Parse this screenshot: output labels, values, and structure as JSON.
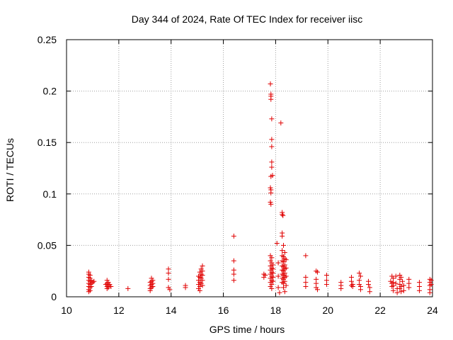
{
  "chart_data": {
    "type": "scatter",
    "title": "Day 344 of 2024, Rate Of TEC Index for receiver iisc",
    "xlabel": "GPS time / hours",
    "ylabel": "ROTI / TECUs",
    "xlim": [
      10,
      24
    ],
    "ylim": [
      0,
      0.25
    ],
    "xticks": [
      10,
      12,
      14,
      16,
      18,
      20,
      22,
      24
    ],
    "yticks": [
      0,
      0.05,
      0.1,
      0.15,
      0.2,
      0.25
    ],
    "xtick_labels": [
      "10",
      "12",
      "14",
      "16",
      "18",
      "20",
      "22",
      "24"
    ],
    "ytick_labels": [
      "0",
      "0.05",
      "0.1",
      "0.15",
      "0.2",
      "0.25"
    ],
    "grid": true,
    "marker": "+",
    "color": "#e00000",
    "series": [
      {
        "name": "ROTI",
        "points": [
          [
            10.85,
            0.024
          ],
          [
            10.85,
            0.022
          ],
          [
            10.85,
            0.019
          ],
          [
            10.85,
            0.016
          ],
          [
            10.85,
            0.013
          ],
          [
            10.85,
            0.01
          ],
          [
            10.85,
            0.007
          ],
          [
            10.85,
            0.005
          ],
          [
            10.9,
            0.021
          ],
          [
            10.9,
            0.018
          ],
          [
            10.9,
            0.015
          ],
          [
            10.9,
            0.012
          ],
          [
            10.9,
            0.009
          ],
          [
            10.9,
            0.006
          ],
          [
            10.95,
            0.016
          ],
          [
            10.95,
            0.013
          ],
          [
            10.95,
            0.01
          ],
          [
            11.0,
            0.014
          ],
          [
            11.05,
            0.015
          ],
          [
            11.5,
            0.012
          ],
          [
            11.55,
            0.016
          ],
          [
            11.55,
            0.013
          ],
          [
            11.55,
            0.01
          ],
          [
            11.55,
            0.008
          ],
          [
            11.6,
            0.014
          ],
          [
            11.6,
            0.011
          ],
          [
            11.6,
            0.009
          ],
          [
            11.65,
            0.012
          ],
          [
            11.7,
            0.01
          ],
          [
            12.35,
            0.008
          ],
          [
            13.2,
            0.014
          ],
          [
            13.2,
            0.011
          ],
          [
            13.2,
            0.008
          ],
          [
            13.2,
            0.006
          ],
          [
            13.25,
            0.018
          ],
          [
            13.25,
            0.015
          ],
          [
            13.25,
            0.012
          ],
          [
            13.25,
            0.009
          ],
          [
            13.3,
            0.016
          ],
          [
            13.3,
            0.013
          ],
          [
            13.3,
            0.01
          ],
          [
            13.9,
            0.027
          ],
          [
            13.9,
            0.023
          ],
          [
            13.9,
            0.017
          ],
          [
            13.9,
            0.009
          ],
          [
            13.95,
            0.007
          ],
          [
            14.55,
            0.011
          ],
          [
            14.55,
            0.009
          ],
          [
            15.05,
            0.02
          ],
          [
            15.05,
            0.016
          ],
          [
            15.05,
            0.012
          ],
          [
            15.05,
            0.008
          ],
          [
            15.1,
            0.024
          ],
          [
            15.1,
            0.019
          ],
          [
            15.1,
            0.014
          ],
          [
            15.1,
            0.01
          ],
          [
            15.1,
            0.006
          ],
          [
            15.15,
            0.027
          ],
          [
            15.15,
            0.022
          ],
          [
            15.15,
            0.018
          ],
          [
            15.15,
            0.013
          ],
          [
            15.2,
            0.03
          ],
          [
            15.2,
            0.025
          ],
          [
            15.2,
            0.021
          ],
          [
            15.2,
            0.016
          ],
          [
            15.2,
            0.011
          ],
          [
            16.4,
            0.059
          ],
          [
            16.4,
            0.035
          ],
          [
            16.4,
            0.026
          ],
          [
            16.4,
            0.022
          ],
          [
            16.4,
            0.016
          ],
          [
            17.55,
            0.022
          ],
          [
            17.55,
            0.019
          ],
          [
            17.6,
            0.021
          ],
          [
            17.8,
            0.207
          ],
          [
            17.82,
            0.197
          ],
          [
            17.82,
            0.195
          ],
          [
            17.82,
            0.192
          ],
          [
            17.85,
            0.173
          ],
          [
            17.85,
            0.153
          ],
          [
            17.85,
            0.146
          ],
          [
            17.85,
            0.131
          ],
          [
            17.85,
            0.126
          ],
          [
            17.82,
            0.117
          ],
          [
            17.88,
            0.118
          ],
          [
            17.8,
            0.106
          ],
          [
            17.82,
            0.104
          ],
          [
            17.82,
            0.101
          ],
          [
            17.8,
            0.092
          ],
          [
            17.82,
            0.09
          ],
          [
            17.8,
            0.04
          ],
          [
            17.8,
            0.035
          ],
          [
            17.8,
            0.03
          ],
          [
            17.8,
            0.026
          ],
          [
            17.8,
            0.022
          ],
          [
            17.8,
            0.018
          ],
          [
            17.8,
            0.014
          ],
          [
            17.8,
            0.01
          ],
          [
            17.85,
            0.038
          ],
          [
            17.85,
            0.033
          ],
          [
            17.85,
            0.028
          ],
          [
            17.85,
            0.024
          ],
          [
            17.85,
            0.02
          ],
          [
            17.85,
            0.016
          ],
          [
            17.85,
            0.012
          ],
          [
            17.85,
            0.008
          ],
          [
            17.9,
            0.031
          ],
          [
            17.9,
            0.027
          ],
          [
            17.9,
            0.023
          ],
          [
            17.9,
            0.019
          ],
          [
            17.9,
            0.015
          ],
          [
            18.05,
            0.052
          ],
          [
            18.1,
            0.033
          ],
          [
            18.1,
            0.02
          ],
          [
            18.1,
            0.009
          ],
          [
            18.15,
            0.004
          ],
          [
            18.2,
            0.169
          ],
          [
            18.25,
            0.082
          ],
          [
            18.25,
            0.08
          ],
          [
            18.28,
            0.079
          ],
          [
            18.25,
            0.062
          ],
          [
            18.25,
            0.059
          ],
          [
            18.3,
            0.05
          ],
          [
            18.25,
            0.045
          ],
          [
            18.25,
            0.04
          ],
          [
            18.25,
            0.035
          ],
          [
            18.25,
            0.03
          ],
          [
            18.25,
            0.026
          ],
          [
            18.25,
            0.022
          ],
          [
            18.25,
            0.018
          ],
          [
            18.25,
            0.014
          ],
          [
            18.3,
            0.039
          ],
          [
            18.3,
            0.034
          ],
          [
            18.3,
            0.029
          ],
          [
            18.3,
            0.025
          ],
          [
            18.3,
            0.021
          ],
          [
            18.3,
            0.017
          ],
          [
            18.3,
            0.013
          ],
          [
            18.3,
            0.009
          ],
          [
            18.35,
            0.043
          ],
          [
            18.35,
            0.037
          ],
          [
            18.35,
            0.031
          ],
          [
            18.35,
            0.027
          ],
          [
            18.35,
            0.023
          ],
          [
            18.35,
            0.019
          ],
          [
            18.35,
            0.015
          ],
          [
            18.35,
            0.005
          ],
          [
            18.4,
            0.036
          ],
          [
            18.4,
            0.028
          ],
          [
            18.4,
            0.02
          ],
          [
            18.4,
            0.011
          ],
          [
            19.15,
            0.04
          ],
          [
            19.15,
            0.019
          ],
          [
            19.15,
            0.014
          ],
          [
            19.15,
            0.01
          ],
          [
            19.55,
            0.025
          ],
          [
            19.6,
            0.024
          ],
          [
            19.55,
            0.017
          ],
          [
            19.55,
            0.013
          ],
          [
            19.55,
            0.009
          ],
          [
            19.6,
            0.007
          ],
          [
            19.95,
            0.021
          ],
          [
            19.95,
            0.016
          ],
          [
            19.95,
            0.012
          ],
          [
            20.5,
            0.014
          ],
          [
            20.5,
            0.011
          ],
          [
            20.5,
            0.008
          ],
          [
            20.9,
            0.019
          ],
          [
            20.9,
            0.015
          ],
          [
            20.9,
            0.011
          ],
          [
            20.95,
            0.012
          ],
          [
            20.95,
            0.01
          ],
          [
            21.2,
            0.023
          ],
          [
            21.25,
            0.02
          ],
          [
            21.2,
            0.016
          ],
          [
            21.2,
            0.012
          ],
          [
            21.25,
            0.01
          ],
          [
            21.25,
            0.007
          ],
          [
            21.55,
            0.015
          ],
          [
            21.55,
            0.012
          ],
          [
            21.6,
            0.009
          ],
          [
            21.6,
            0.005
          ],
          [
            22.4,
            0.015
          ],
          [
            22.45,
            0.02
          ],
          [
            22.45,
            0.013
          ],
          [
            22.45,
            0.01
          ],
          [
            22.5,
            0.018
          ],
          [
            22.5,
            0.014
          ],
          [
            22.5,
            0.011
          ],
          [
            22.5,
            0.006
          ],
          [
            22.6,
            0.02
          ],
          [
            22.6,
            0.013
          ],
          [
            22.65,
            0.008
          ],
          [
            22.65,
            0.004
          ],
          [
            22.75,
            0.021
          ],
          [
            22.75,
            0.017
          ],
          [
            22.75,
            0.012
          ],
          [
            22.75,
            0.008
          ],
          [
            22.8,
            0.019
          ],
          [
            22.8,
            0.01
          ],
          [
            22.8,
            0.005
          ],
          [
            22.85,
            0.015
          ],
          [
            22.9,
            0.011
          ],
          [
            22.9,
            0.006
          ],
          [
            23.1,
            0.017
          ],
          [
            23.1,
            0.013
          ],
          [
            23.1,
            0.009
          ],
          [
            23.5,
            0.014
          ],
          [
            23.5,
            0.01
          ],
          [
            23.5,
            0.006
          ],
          [
            23.9,
            0.017
          ],
          [
            23.9,
            0.014
          ],
          [
            23.9,
            0.011
          ],
          [
            23.9,
            0.007
          ],
          [
            23.9,
            0.004
          ],
          [
            23.95,
            0.016
          ],
          [
            23.95,
            0.012
          ]
        ]
      }
    ]
  }
}
